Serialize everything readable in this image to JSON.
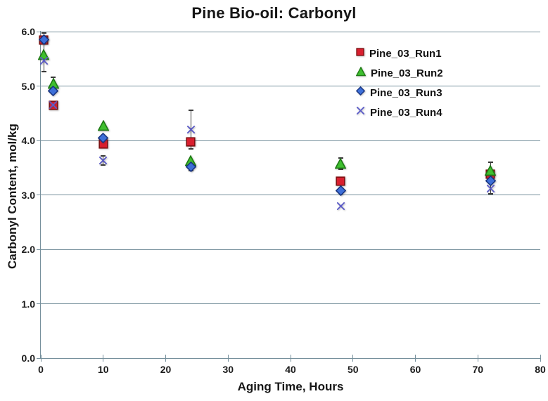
{
  "chart_data": {
    "type": "scatter",
    "title": "Pine Bio-oil: Carbonyl",
    "xlabel": "Aging Time, Hours",
    "ylabel": "Carbonyl Content, mol/kg",
    "xlim": [
      0,
      80
    ],
    "ylim": [
      0.0,
      6.0
    ],
    "xticks": [
      "0",
      "10",
      "20",
      "30",
      "40",
      "50",
      "60",
      "70",
      "80"
    ],
    "yticks": [
      "0.0",
      "1.0",
      "2.0",
      "3.0",
      "4.0",
      "5.0",
      "6.0"
    ],
    "grid": "horizontal-only",
    "legend_position": "inside-upper-right",
    "x": [
      0,
      2,
      10,
      24,
      48,
      72
    ],
    "series": [
      {
        "name": "Pine_03_Run1",
        "marker": "square",
        "color": "#d91f2f",
        "border": "#7e1113",
        "values": [
          5.85,
          4.65,
          3.93,
          3.98,
          3.25,
          3.38
        ]
      },
      {
        "name": "Pine_03_Run2",
        "marker": "triangle",
        "color": "#3fbf2f",
        "border": "#1e7a14",
        "values": [
          5.57,
          5.05,
          4.27,
          3.62,
          3.57,
          3.45
        ]
      },
      {
        "name": "Pine_03_Run3",
        "marker": "diamond",
        "color": "#3d6fd8",
        "border": "#17327e",
        "values": [
          5.85,
          4.91,
          4.05,
          3.52,
          3.08,
          3.26
        ]
      },
      {
        "name": "Pine_03_Run4",
        "marker": "x",
        "color": "#5b5bc8",
        "border": "#5b5bc8",
        "values": [
          5.46,
          4.65,
          3.63,
          4.2,
          2.8,
          3.12
        ]
      }
    ],
    "error_bars": [
      {
        "x": 0,
        "top": 5.97,
        "bottom": 5.26
      },
      {
        "x": 2,
        "top": 5.16,
        "bottom": 4.99
      },
      {
        "x": 10,
        "top": 3.71,
        "bottom": 3.55
      },
      {
        "x": 24,
        "top": 4.55,
        "bottom": 3.85
      },
      {
        "x": 24,
        "top": 3.62,
        "bottom": 3.44
      },
      {
        "x": 48,
        "top": 3.68,
        "bottom": 3.47
      },
      {
        "x": 72,
        "top": 3.6,
        "bottom": 3.02
      }
    ],
    "colors": {
      "gridline": "#76909c",
      "axis": "#76909c",
      "error_bar": "#383838",
      "title_text": "#161616",
      "tick_text": "#1b1b1b"
    }
  }
}
